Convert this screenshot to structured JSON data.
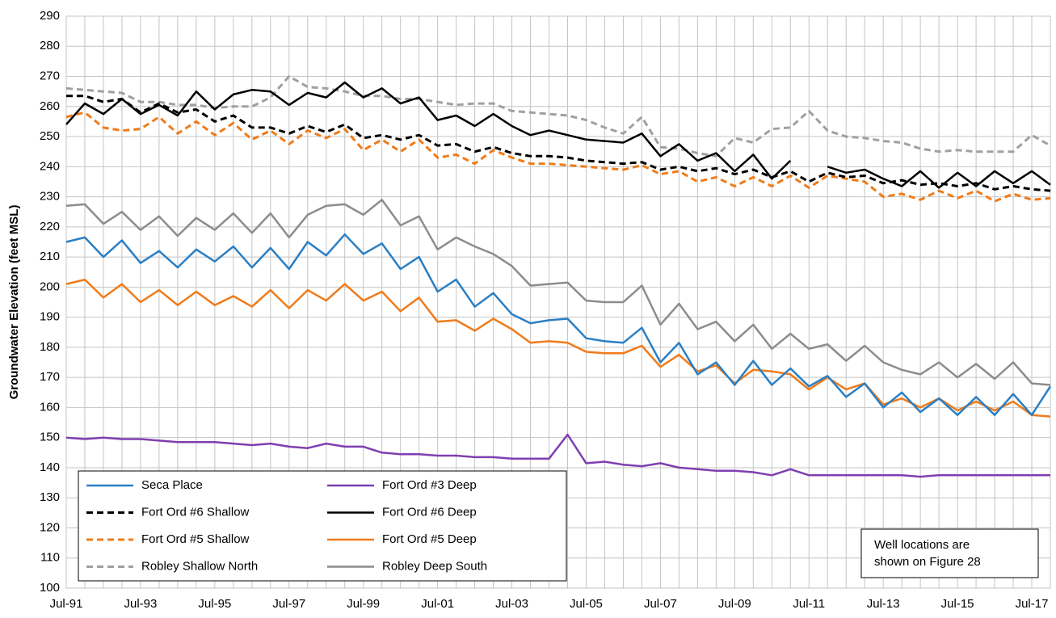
{
  "chart_data": {
    "type": "line",
    "y_label": "Groundwater Elevation (feet MSL)",
    "categories": [
      "Jul-91",
      null,
      null,
      null,
      "Jul-93",
      null,
      null,
      null,
      "Jul-95",
      null,
      null,
      null,
      "Jul-97",
      null,
      null,
      null,
      "Jul-99",
      null,
      null,
      null,
      "Jul-01",
      null,
      null,
      null,
      "Jul-03",
      null,
      null,
      null,
      "Jul-05",
      null,
      null,
      null,
      "Jul-07",
      null,
      null,
      null,
      "Jul-09",
      null,
      null,
      null,
      "Jul-11",
      null,
      null,
      null,
      "Jul-13",
      null,
      null,
      null,
      "Jul-15",
      null,
      null,
      null,
      "Jul-17",
      null
    ],
    "ylim": [
      100,
      290
    ],
    "yticks": [
      100,
      110,
      120,
      130,
      140,
      150,
      160,
      170,
      180,
      190,
      200,
      210,
      220,
      230,
      240,
      250,
      260,
      270,
      280,
      290
    ],
    "grid": true,
    "legend": "lower left",
    "annotation": [
      "Well locations are",
      "shown on Figure 28"
    ],
    "series": [
      {
        "name": "Seca Place",
        "color": "#2a7fc4",
        "dashed": false,
        "values": [
          215,
          216.5,
          210,
          215.5,
          208,
          212,
          206.5,
          212.5,
          208.5,
          213.5,
          206.5,
          213,
          206,
          215,
          210.5,
          217.5,
          211,
          214.5,
          206,
          210,
          198.5,
          202.5,
          193.5,
          198,
          191,
          188,
          189,
          189.5,
          183,
          182,
          181.5,
          186.5,
          175,
          181.5,
          171,
          175,
          167.5,
          175.5,
          167.5,
          173,
          167,
          170.5,
          163.5,
          168,
          160,
          165,
          158.5,
          163,
          157.5,
          163.5,
          157.5,
          164.5,
          157.5,
          167
        ]
      },
      {
        "name": "Fort Ord #3 Deep",
        "color": "#7f3fb0",
        "dashed": false,
        "values": [
          150,
          149.5,
          150,
          149.5,
          149.5,
          149,
          148.5,
          148.5,
          148.5,
          148,
          147.5,
          148,
          147,
          146.5,
          148,
          147,
          147,
          145,
          144.5,
          144.5,
          144,
          144,
          143.5,
          143.5,
          143,
          143,
          143,
          151,
          141.5,
          142,
          141,
          140.5,
          141.5,
          140,
          139.5,
          139,
          139,
          138.5,
          137.5,
          139.5,
          137.5,
          137.5,
          137.5,
          137.5,
          137.5,
          137.5,
          137,
          137.5,
          137.5,
          137.5,
          137.5,
          137.5,
          137.5,
          137.5
        ]
      },
      {
        "name": "Fort Ord #6 Shallow",
        "color": "#000000",
        "dashed": true,
        "values": [
          263.5,
          263.5,
          261.5,
          262.5,
          258,
          261,
          258,
          259,
          255,
          257,
          253,
          253,
          251,
          253.5,
          251.5,
          254,
          249.5,
          250.5,
          249,
          250.5,
          247,
          247.5,
          245,
          246.5,
          244.5,
          243.5,
          243.5,
          243,
          242,
          241.5,
          241,
          241.5,
          239,
          240,
          238.5,
          239.5,
          237.5,
          239,
          236.5,
          238.5,
          235,
          238,
          236.5,
          237,
          234.5,
          235.5,
          234,
          234.5,
          233.5,
          234.5,
          232.5,
          233.5,
          232.5,
          232
        ]
      },
      {
        "name": "Fort Ord #6 Deep",
        "color": "#000000",
        "dashed": false,
        "values": [
          254,
          261,
          257.5,
          262.5,
          257.5,
          260.5,
          257,
          265,
          259,
          264,
          265.5,
          265,
          260.5,
          264.5,
          263,
          268,
          263,
          266,
          261,
          263,
          255.5,
          257,
          253.5,
          257.5,
          253.5,
          250.5,
          252,
          250.5,
          249,
          248.5,
          248,
          251,
          243.5,
          247.5,
          242,
          244.5,
          238.5,
          244,
          236,
          242,
          null,
          240,
          238,
          239,
          236,
          233.5,
          238.5,
          233,
          238,
          233.5,
          238.5,
          234.5,
          238.5,
          234
        ]
      },
      {
        "name": "Fort Ord #5 Shallow",
        "color": "#f07b1a",
        "dashed": true,
        "values": [
          256.5,
          258,
          253,
          252,
          252.5,
          256.5,
          251,
          255,
          250.5,
          254.5,
          249,
          252,
          247.5,
          252,
          249.5,
          252.5,
          245.5,
          249,
          245,
          249,
          243,
          244,
          241,
          245.5,
          243,
          241,
          241,
          240.5,
          240,
          239.5,
          239,
          240.5,
          237.5,
          238.5,
          235,
          236.5,
          233.5,
          236.5,
          233.5,
          237,
          233,
          237,
          236,
          235,
          230,
          231,
          229,
          232,
          229.5,
          232,
          228.5,
          231,
          229,
          229.5
        ]
      },
      {
        "name": "Fort Ord #5 Deep",
        "color": "#f07b1a",
        "dashed": false,
        "values": [
          201,
          202.5,
          196.5,
          201,
          195,
          199,
          194,
          198.5,
          194,
          197,
          193.5,
          199,
          193,
          199,
          195.5,
          201,
          195.5,
          198.5,
          192,
          196.5,
          188.5,
          189,
          185.5,
          189.5,
          186,
          181.5,
          182,
          181.5,
          178.5,
          178,
          178,
          180.5,
          173.5,
          177.5,
          172,
          174,
          168,
          172.5,
          172,
          171,
          166,
          170,
          166,
          168,
          161,
          163,
          160,
          163,
          159,
          162,
          159,
          162,
          157.5,
          157
        ]
      },
      {
        "name": "Robley Shallow North",
        "color": "#a0a0a0",
        "dashed": true,
        "values": [
          266,
          265.5,
          265,
          264.5,
          261.5,
          261.5,
          260.5,
          260.5,
          259.5,
          260,
          260,
          263,
          270,
          266.5,
          266,
          265,
          263.5,
          263.5,
          262.5,
          262.5,
          261.5,
          260.5,
          261,
          261,
          258.5,
          258,
          257.5,
          257,
          255.5,
          253,
          251,
          256.5,
          246.5,
          246,
          244.5,
          243.5,
          249.5,
          248,
          252.5,
          253,
          258.5,
          252,
          250,
          249.5,
          248.5,
          248,
          246,
          245,
          245.5,
          245,
          245,
          245,
          250.5,
          247
        ]
      },
      {
        "name": "Robley Deep South",
        "color": "#8c8c8c",
        "dashed": false,
        "values": [
          227,
          227.5,
          221,
          225,
          219,
          223.5,
          217,
          223,
          219,
          224.5,
          218,
          224.5,
          216.5,
          224,
          227,
          227.5,
          224,
          229,
          220.5,
          223.5,
          212.5,
          216.5,
          213.5,
          211,
          207,
          200.5,
          201,
          201.5,
          195.5,
          195,
          195,
          200.5,
          187.5,
          194.5,
          186,
          188.5,
          182,
          187.5,
          179.5,
          184.5,
          179.5,
          181,
          175.5,
          180.5,
          175,
          172.5,
          171,
          175,
          170,
          174.5,
          169.5,
          175,
          168,
          167.5
        ]
      }
    ]
  }
}
